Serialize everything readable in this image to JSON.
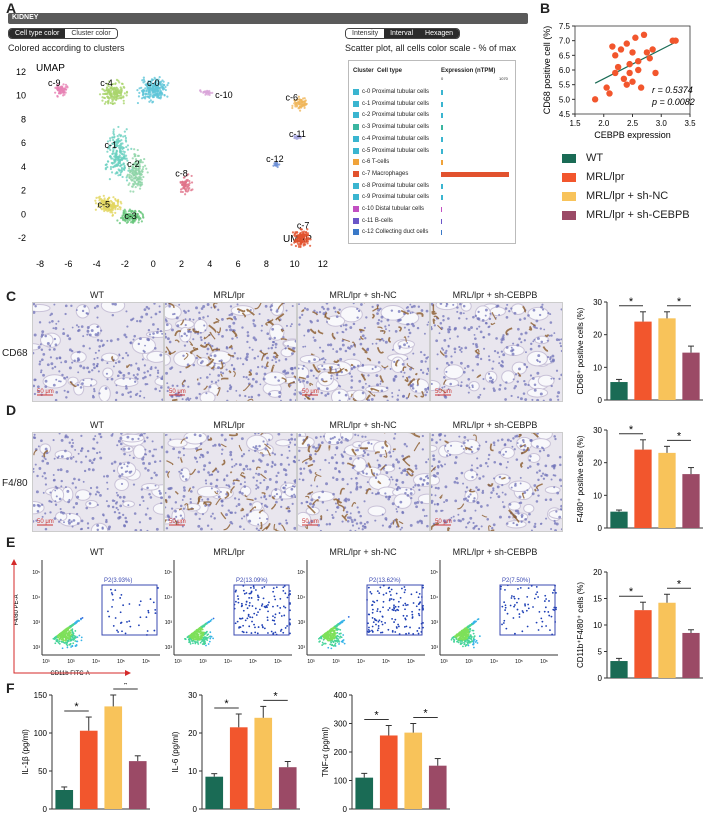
{
  "panels": {
    "A": "A",
    "B": "B",
    "C": "C",
    "D": "D",
    "E": "E",
    "F": "F"
  },
  "umap": {
    "brand": "KIDNEY",
    "brand_sup": "3",
    "tab_left": [
      "Cell type color",
      "Cluster color"
    ],
    "tab_right": [
      "Intensity",
      "Interval",
      "Hexagen"
    ],
    "subtitle_left": "Colored according to clusters",
    "subtitle_right": "Scatter plot, all cells color scale - % of max",
    "axis_label_y": "UMAP",
    "axis_label_x": "UMAP",
    "x_ticks": [
      "-8",
      "-6",
      "-4",
      "-2",
      "0",
      "2",
      "4",
      "6",
      "8",
      "10",
      "12"
    ],
    "y_ticks": [
      "12",
      "10",
      "8",
      "6",
      "4",
      "2",
      "0",
      "-2"
    ],
    "clusters": [
      {
        "id": "c-0",
        "color": "#5fc6d8"
      },
      {
        "id": "c-1",
        "color": "#6cd1c0"
      },
      {
        "id": "c-2",
        "color": "#8fd4a8"
      },
      {
        "id": "c-3",
        "color": "#66c57a"
      },
      {
        "id": "c-4",
        "color": "#a9d46b"
      },
      {
        "id": "c-5",
        "color": "#e2d65f"
      },
      {
        "id": "c-6",
        "color": "#f0b75b"
      },
      {
        "id": "c-7",
        "color": "#e2522e"
      },
      {
        "id": "c-8",
        "color": "#e0738a"
      },
      {
        "id": "c-9",
        "color": "#e782b4"
      },
      {
        "id": "c-10",
        "color": "#d9a6d9"
      },
      {
        "id": "c-11",
        "color": "#a6a6e0"
      },
      {
        "id": "c-12",
        "color": "#6b8fd6"
      }
    ],
    "table_header": {
      "cluster": "Cluster",
      "cell_type": "Cell type",
      "expression": "Expression (nTPM)",
      "min": "0",
      "max": "1070"
    },
    "table_rows": [
      {
        "cluster": "c-0",
        "cell": "Proximal tubular cells",
        "color": "#3ab5d0",
        "value": 3
      },
      {
        "cluster": "c-1",
        "cell": "Proximal tubular cells",
        "color": "#3ab5d0",
        "value": 3
      },
      {
        "cluster": "c-2",
        "cell": "Proximal tubular cells",
        "color": "#3ab5d0",
        "value": 3
      },
      {
        "cluster": "c-3",
        "cell": "Proximal tubular cells",
        "color": "#3ab5a0",
        "value": 3
      },
      {
        "cluster": "c-4",
        "cell": "Proximal tubular cells",
        "color": "#3ab5d0",
        "value": 3
      },
      {
        "cluster": "c-5",
        "cell": "Proximal tubular cells",
        "color": "#3ab5d0",
        "value": 3
      },
      {
        "cluster": "c-6",
        "cell": "T-cells",
        "color": "#f0a33a",
        "value": 3
      },
      {
        "cluster": "c-7",
        "cell": "Macrophages",
        "color": "#e2522e",
        "value": 100
      },
      {
        "cluster": "c-8",
        "cell": "Proximal tubular cells",
        "color": "#3ab5d0",
        "value": 3
      },
      {
        "cluster": "c-9",
        "cell": "Proximal tubular cells",
        "color": "#3ab5d0",
        "value": 3
      },
      {
        "cluster": "c-10",
        "cell": "Distal tubular cells",
        "color": "#c24fc2",
        "value": 1
      },
      {
        "cluster": "c-11",
        "cell": "B-cells",
        "color": "#6a56c8",
        "value": 1
      },
      {
        "cluster": "c-12",
        "cell": "Collecting duct cells",
        "color": "#3a79c8",
        "value": 1
      }
    ]
  },
  "scatter": {
    "xlabel": "CEBPB expression",
    "ylabel": "CD68 positive cell (%)",
    "r": "r = 0.5374",
    "p": "p = 0.0082",
    "x_ticks": [
      "1.5",
      "2.0",
      "2.5",
      "3.0",
      "3.5"
    ],
    "y_ticks": [
      "7.5",
      "7.0",
      "6.5",
      "6.0",
      "5.5",
      "5.0",
      "4.5"
    ]
  },
  "groups": {
    "wt": "WT",
    "mrl": "MRL/lpr",
    "shnc": "MRL/lpr + sh-NC",
    "shcebpb": "MRL/lpr + sh-CEBPB"
  },
  "colors": {
    "wt": "#1a6b55",
    "mrl": "#f2562d",
    "shnc": "#f8c35a",
    "shcebpb": "#9b4a66"
  },
  "micro": {
    "row_cd68": "CD68",
    "row_f480": "F4/80",
    "scalebar": "50 μm"
  },
  "flow": {
    "ylabel": "F4/80 PE-A",
    "xlabel": "CD11b FITC-A",
    "gates": [
      "P2(3.93%)",
      "P2(13.09%)",
      "P2(13.62%)",
      "P2(7.50%)"
    ],
    "x_ticks": [
      "10³",
      "10³",
      "10⁴",
      "10⁵",
      "10⁶"
    ],
    "y_ticks": [
      "10⁵",
      "10⁴",
      "10³",
      "10³"
    ]
  },
  "star": "*",
  "chart_data": [
    {
      "type": "scatter",
      "title": "",
      "xlabel": "CEBPB expression",
      "ylabel": "CD68 positive cell (%)",
      "xlim": [
        1.5,
        3.5
      ],
      "ylim": [
        4.5,
        7.5
      ],
      "x": [
        1.85,
        2.05,
        2.1,
        2.15,
        2.2,
        2.2,
        2.25,
        2.3,
        2.35,
        2.4,
        2.4,
        2.45,
        2.45,
        2.5,
        2.5,
        2.55,
        2.6,
        2.6,
        2.65,
        2.7,
        2.75,
        2.8,
        2.85,
        2.9,
        3.2,
        3.25
      ],
      "y": [
        5.0,
        5.4,
        5.2,
        6.8,
        5.9,
        6.5,
        6.1,
        6.7,
        5.7,
        6.9,
        5.5,
        6.2,
        5.9,
        6.6,
        5.6,
        7.1,
        6.0,
        6.3,
        5.4,
        7.2,
        6.6,
        6.4,
        6.7,
        5.9,
        7.0,
        7.0
      ],
      "fit": {
        "x": [
          1.85,
          3.25
        ],
        "y": [
          5.55,
          6.95
        ]
      }
    },
    {
      "type": "bar",
      "title": "",
      "ylabel": "CD68⁺ positive cells (%)",
      "categories": [
        "WT",
        "MRL/lpr",
        "MRL/lpr + sh-NC",
        "MRL/lpr + sh-CEBPB"
      ],
      "values": [
        5.5,
        24,
        25,
        14.5
      ],
      "errors": [
        0.8,
        3,
        2,
        2
      ],
      "ylim": [
        0,
        30
      ],
      "yticks": [
        "0",
        "10",
        "20",
        "30"
      ]
    },
    {
      "type": "bar",
      "title": "",
      "ylabel": "F4/80⁺ positive cells (%)",
      "categories": [
        "WT",
        "MRL/lpr",
        "MRL/lpr + sh-NC",
        "MRL/lpr + sh-CEBPB"
      ],
      "values": [
        5,
        24,
        23,
        16.5
      ],
      "errors": [
        0.5,
        3,
        2,
        2
      ],
      "ylim": [
        0,
        30
      ],
      "yticks": [
        "0",
        "10",
        "20",
        "30"
      ]
    },
    {
      "type": "bar",
      "title": "",
      "ylabel": "CD11b⁺F4/80⁺ cells (%)",
      "categories": [
        "WT",
        "MRL/lpr",
        "MRL/lpr + sh-NC",
        "MRL/lpr + sh-CEBPB"
      ],
      "values": [
        3.2,
        12.8,
        14.2,
        8.5
      ],
      "errors": [
        0.5,
        1.5,
        1.6,
        0.6
      ],
      "ylim": [
        0,
        20
      ],
      "yticks": [
        "0",
        "5",
        "10",
        "15",
        "20"
      ]
    },
    {
      "type": "bar",
      "title": "",
      "ylabel": "IL-1β (pg/ml)",
      "categories": [
        "WT",
        "MRL/lpr",
        "MRL/lpr + sh-NC",
        "MRL/lpr + sh-CEBPB"
      ],
      "values": [
        25,
        103,
        135,
        63
      ],
      "errors": [
        4,
        18,
        15,
        7
      ],
      "ylim": [
        0,
        150
      ],
      "yticks": [
        "0",
        "50",
        "100",
        "150"
      ]
    },
    {
      "type": "bar",
      "title": "",
      "ylabel": "IL-6 (pg/ml)",
      "categories": [
        "WT",
        "MRL/lpr",
        "MRL/lpr + sh-NC",
        "MRL/lpr + sh-CEBPB"
      ],
      "values": [
        8.5,
        21.5,
        24,
        11
      ],
      "errors": [
        0.8,
        3.5,
        3,
        1.5
      ],
      "ylim": [
        0,
        30
      ],
      "yticks": [
        "0",
        "10",
        "20",
        "30"
      ]
    },
    {
      "type": "bar",
      "title": "",
      "ylabel": "TNF-α (pg/ml)",
      "categories": [
        "WT",
        "MRL/lpr",
        "MRL/lpr + sh-NC",
        "MRL/lpr + sh-CEBPB"
      ],
      "values": [
        110,
        258,
        268,
        152
      ],
      "errors": [
        15,
        35,
        32,
        25
      ],
      "ylim": [
        0,
        400
      ],
      "yticks": [
        "0",
        "100",
        "200",
        "300",
        "400"
      ]
    }
  ]
}
